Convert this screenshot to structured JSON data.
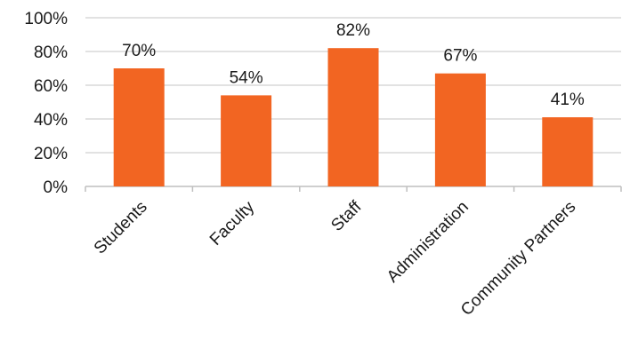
{
  "chart_data": {
    "type": "bar",
    "categories": [
      "Students",
      "Faculty",
      "Staff",
      "Administration",
      "Community Partners"
    ],
    "values": [
      70,
      54,
      82,
      67,
      41
    ],
    "data_labels": [
      "70%",
      "54%",
      "82%",
      "67%",
      "41%"
    ],
    "yticks": [
      0,
      20,
      40,
      60,
      80,
      100
    ],
    "ytick_labels": [
      "0%",
      "20%",
      "40%",
      "60%",
      "80%",
      "100%"
    ],
    "ylim": [
      0,
      100
    ],
    "title": "",
    "xlabel": "",
    "ylabel": "",
    "grid": true,
    "legend": "none",
    "colors": {
      "bar": "#F26522",
      "grid": "#d9d9d9",
      "axis": "#bfbfbf",
      "text": "#1a1a1a"
    }
  }
}
